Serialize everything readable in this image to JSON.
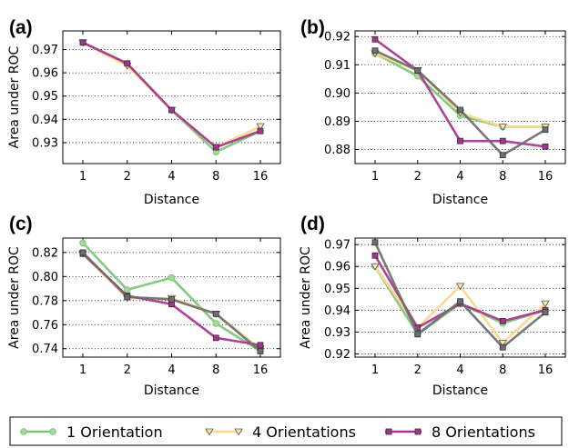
{
  "chart_data": [
    {
      "panel": "(a)",
      "type": "line",
      "x": [
        1,
        2,
        4,
        8,
        16
      ],
      "xlabel": "Distance",
      "ylabel": "Area under ROC",
      "ylim": [
        0.921,
        0.978
      ],
      "yticks": [
        0.93,
        0.94,
        0.95,
        0.96,
        0.97
      ],
      "ytick_labels": [
        "0.93",
        "0.94",
        "0.95",
        "0.96",
        "0.97"
      ],
      "grid": "y-dotted",
      "series": [
        {
          "name": "1 Orientation",
          "values": [
            0.973,
            0.964,
            0.944,
            0.926,
            0.935
          ]
        },
        {
          "name": "4 Orientations",
          "values": [
            0.973,
            0.963,
            0.944,
            0.928,
            0.937
          ]
        },
        {
          "name": "8 Orientations",
          "values": [
            0.973,
            0.964,
            0.944,
            0.928,
            0.935
          ]
        }
      ]
    },
    {
      "panel": "(b)",
      "type": "line",
      "x": [
        1,
        2,
        4,
        8,
        16
      ],
      "xlabel": "Distance",
      "ylabel": "",
      "ylim": [
        0.875,
        0.922
      ],
      "yticks": [
        0.88,
        0.89,
        0.9,
        0.91,
        0.92
      ],
      "ytick_labels": [
        "0.88",
        "0.89",
        "0.90",
        "0.91",
        "0.92"
      ],
      "grid": "y-dotted",
      "series": [
        {
          "name": "1 Orientation",
          "values": [
            0.914,
            0.906,
            0.892,
            0.888,
            0.888
          ]
        },
        {
          "name": "4 Orientations",
          "values": [
            0.914,
            0.908,
            0.893,
            0.888,
            0.888
          ]
        },
        {
          "name": "8 Orientations",
          "values": [
            0.919,
            0.908,
            0.883,
            0.883,
            0.881
          ]
        },
        {
          "name": "",
          "values": [
            0.915,
            0.908,
            0.894,
            0.878,
            0.887
          ]
        }
      ]
    },
    {
      "panel": "(c)",
      "type": "line",
      "x": [
        1,
        2,
        4,
        8,
        16
      ],
      "xlabel": "Distance",
      "ylabel": "Area under ROC",
      "ylim": [
        0.733,
        0.832
      ],
      "yticks": [
        0.74,
        0.76,
        0.78,
        0.8,
        0.82
      ],
      "ytick_labels": [
        "0.74",
        "0.76",
        "0.78",
        "0.80",
        "0.82"
      ],
      "grid": "y-dotted",
      "series": [
        {
          "name": "1 Orientation",
          "values": [
            0.828,
            0.789,
            0.799,
            0.761,
            0.738
          ]
        },
        {
          "name": "4 Orientations",
          "values": [
            0.819,
            0.782,
            0.782,
            0.769,
            0.74
          ]
        },
        {
          "name": "8 Orientations",
          "values": [
            0.819,
            0.784,
            0.777,
            0.749,
            0.743
          ]
        },
        {
          "name": "",
          "values": [
            0.82,
            0.783,
            0.781,
            0.769,
            0.738
          ]
        }
      ]
    },
    {
      "panel": "(d)",
      "type": "line",
      "x": [
        1,
        2,
        4,
        8,
        16
      ],
      "xlabel": "Distance",
      "ylabel": "Area under ROC",
      "ylim": [
        0.9185,
        0.973
      ],
      "yticks": [
        0.92,
        0.93,
        0.94,
        0.95,
        0.96,
        0.97
      ],
      "ytick_labels": [
        "0.92",
        "0.93",
        "0.94",
        "0.95",
        "0.96",
        "0.97"
      ],
      "grid": "y-dotted",
      "series": [
        {
          "name": "1 Orientation",
          "values": [
            0.96,
            0.929,
            0.943,
            0.934,
            0.94
          ]
        },
        {
          "name": "4 Orientations",
          "values": [
            0.96,
            0.932,
            0.951,
            0.925,
            0.943
          ]
        },
        {
          "name": "8 Orientations",
          "values": [
            0.965,
            0.932,
            0.943,
            0.935,
            0.94
          ]
        },
        {
          "name": "",
          "values": [
            0.971,
            0.929,
            0.944,
            0.923,
            0.939
          ]
        }
      ]
    }
  ],
  "x_tick_labels": [
    "1",
    "2",
    "4",
    "8",
    "16"
  ],
  "legend": {
    "placement": "bottom",
    "items": [
      {
        "label": "1 Orientation",
        "marker": "circle",
        "color": "#7cc576",
        "marker_fill": "#a6d89b"
      },
      {
        "label": "4 Orientations",
        "marker": "triangle-down",
        "color": "#fdd68c",
        "marker_fill": "#fde7b5"
      },
      {
        "label": "8 Orientations",
        "marker": "square",
        "color": "#a8338f",
        "marker_fill": "#a8338f"
      }
    ]
  },
  "colors": {
    "one_orientation": "#7cc576",
    "four_orientations": "#fdd68c",
    "eight_orientations": "#a8338f",
    "unlabeled_series": "#6e6e6e"
  }
}
